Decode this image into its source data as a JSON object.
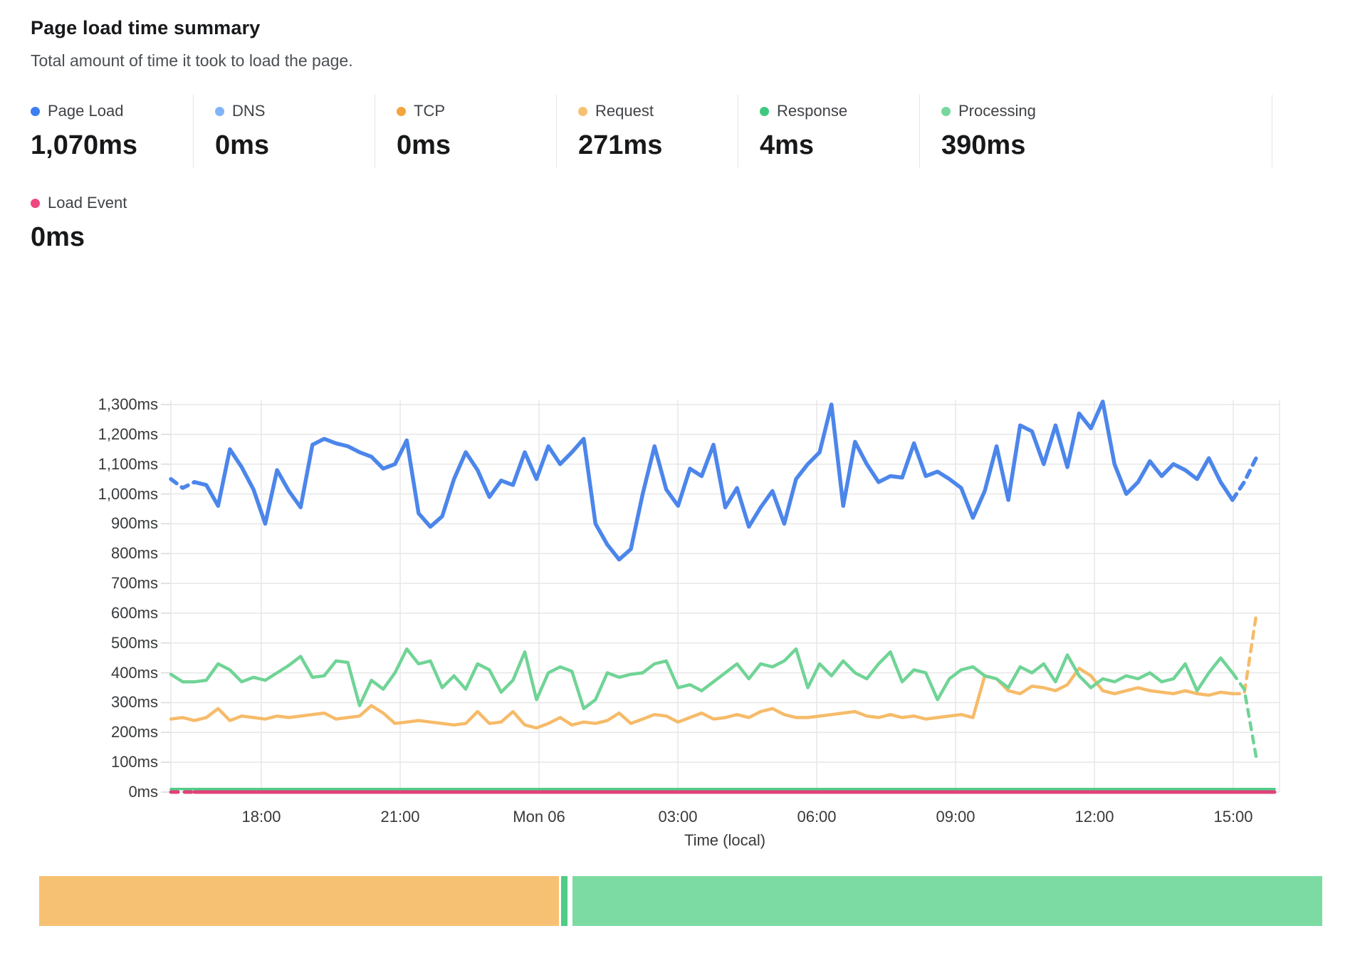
{
  "header": {
    "title": "Page load time summary",
    "subtitle": "Total amount of time it took to load the page."
  },
  "metrics": [
    {
      "label": "Page Load",
      "value": "1,070ms",
      "color": "#3d7ef2"
    },
    {
      "label": "DNS",
      "value": "0ms",
      "color": "#82b3f8"
    },
    {
      "label": "TCP",
      "value": "0ms",
      "color": "#f3a43c"
    },
    {
      "label": "Request",
      "value": "271ms",
      "color": "#f7c173"
    },
    {
      "label": "Response",
      "value": "4ms",
      "color": "#3ec980"
    },
    {
      "label": "Processing",
      "value": "390ms",
      "color": "#77d89e"
    }
  ],
  "secondary_metric": {
    "label": "Load Event",
    "value": "0ms",
    "color": "#f0457f"
  },
  "chart_data": {
    "type": "line",
    "title": "Page load time summary",
    "xlabel": "Time (local)",
    "ylabel": "",
    "ylim": [
      0,
      1300
    ],
    "grid": true,
    "x_ticks": [
      "18:00",
      "21:00",
      "Mon 06",
      "03:00",
      "06:00",
      "09:00",
      "12:00",
      "15:00"
    ],
    "y_tick_labels": [
      "0ms",
      "100ms",
      "200ms",
      "300ms",
      "400ms",
      "500ms",
      "600ms",
      "700ms",
      "800ms",
      "900ms",
      "1,000ms",
      "1,100ms",
      "1,200ms",
      "1,300ms"
    ],
    "note": "dashed segments at series ends indicate incomplete data buckets",
    "series": [
      {
        "name": "Page Load",
        "color": "#4c86eb",
        "values": [
          1050,
          1020,
          1040,
          1030,
          960,
          1150,
          1090,
          1015,
          900,
          1080,
          1010,
          955,
          1165,
          1185,
          1170,
          1160,
          1140,
          1125,
          1085,
          1100,
          1180,
          935,
          890,
          925,
          1050,
          1140,
          1080,
          990,
          1045,
          1030,
          1140,
          1050,
          1160,
          1100,
          1140,
          1185,
          900,
          830,
          780,
          815,
          1000,
          1160,
          1015,
          960,
          1085,
          1060,
          1165,
          955,
          1020,
          890,
          955,
          1010,
          900,
          1050,
          1100,
          1140,
          1300,
          960,
          1175,
          1100,
          1040,
          1060,
          1055,
          1170,
          1060,
          1075,
          1050,
          1020,
          920,
          1010,
          1160,
          980,
          1230,
          1210,
          1100,
          1230,
          1090,
          1270,
          1220,
          1310,
          1100,
          1000,
          1040,
          1110,
          1060,
          1100,
          1080,
          1050,
          1120,
          1040,
          980,
          1040,
          1120
        ]
      },
      {
        "name": "Processing",
        "color": "#70d496",
        "values": [
          395,
          370,
          370,
          375,
          430,
          410,
          370,
          385,
          375,
          400,
          425,
          455,
          385,
          390,
          440,
          435,
          290,
          375,
          345,
          400,
          480,
          430,
          440,
          350,
          390,
          345,
          430,
          410,
          335,
          375,
          470,
          310,
          400,
          420,
          405,
          280,
          310,
          400,
          385,
          395,
          400,
          430,
          440,
          350,
          360,
          340,
          370,
          400,
          430,
          380,
          430,
          420,
          440,
          480,
          350,
          430,
          390,
          440,
          400,
          380,
          430,
          470,
          370,
          410,
          400,
          310,
          380,
          410,
          420,
          390,
          380,
          350,
          420,
          400,
          430,
          370,
          460,
          390,
          350,
          380,
          370,
          390,
          380,
          400,
          370,
          380,
          430,
          340,
          400,
          450,
          400,
          345,
          120
        ]
      },
      {
        "name": "Request",
        "color": "#f6bb69",
        "values": [
          245,
          250,
          240,
          250,
          280,
          240,
          255,
          250,
          245,
          255,
          250,
          255,
          260,
          265,
          245,
          250,
          255,
          290,
          265,
          230,
          235,
          240,
          235,
          230,
          225,
          230,
          270,
          230,
          235,
          270,
          225,
          215,
          230,
          250,
          225,
          235,
          230,
          240,
          265,
          230,
          245,
          260,
          255,
          235,
          250,
          265,
          245,
          250,
          260,
          250,
          270,
          280,
          260,
          250,
          250,
          255,
          260,
          265,
          270,
          255,
          250,
          260,
          250,
          255,
          245,
          250,
          255,
          260,
          250,
          390,
          380,
          340,
          330,
          355,
          350,
          340,
          360,
          415,
          390,
          340,
          330,
          340,
          350,
          340,
          335,
          330,
          340,
          330,
          325,
          335,
          330,
          330,
          590
        ]
      },
      {
        "name": "Response",
        "color": "#52cd86",
        "constant": 4
      },
      {
        "name": "DNS",
        "color": "#82b3f8",
        "constant": 0
      },
      {
        "name": "TCP",
        "color": "#f3a43c",
        "constant": 0
      },
      {
        "name": "Load Event",
        "color": "#e1417a",
        "constant": 0
      }
    ]
  },
  "footer_bar": {
    "segments": [
      {
        "name": "Request",
        "value": 271,
        "color": "#f7c173"
      },
      {
        "name": "Response",
        "value": 4,
        "color": "#50cc84"
      },
      {
        "name": "Processing",
        "value": 390,
        "color": "#7cdba2"
      }
    ]
  }
}
